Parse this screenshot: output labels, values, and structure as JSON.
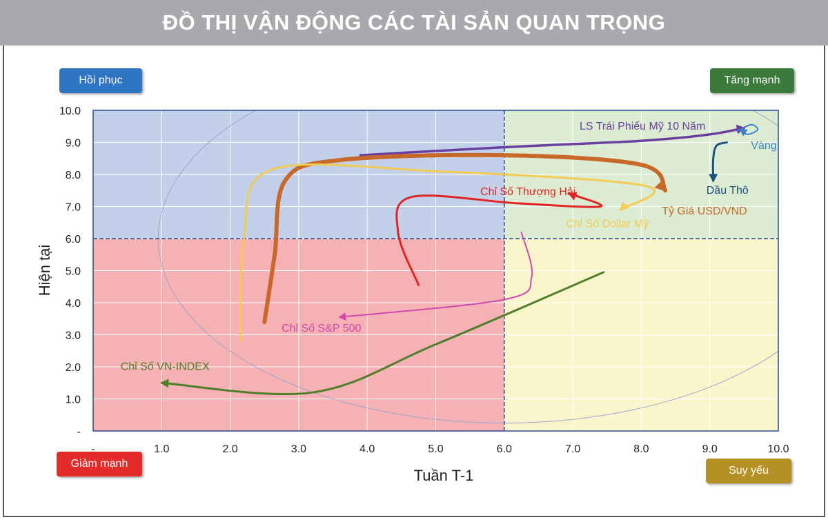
{
  "header": {
    "title": "ĐỒ THỊ VẬN ĐỘNG CÁC TÀI SẢN QUAN TRỌNG"
  },
  "quadrants": {
    "recovering": {
      "label": "Hồi phục",
      "color": "#2e75c4"
    },
    "strong": {
      "label": "Tăng mạnh",
      "color": "#3c7a3c"
    },
    "falling": {
      "label": "Giảm mạnh",
      "color": "#e52a2a"
    },
    "weakening": {
      "label": "Suy yếu",
      "color": "#b59022"
    }
  },
  "chart_data": {
    "type": "line",
    "xlabel": "Tuần T-1",
    "ylabel": "Hiện tại",
    "xlim": [
      0,
      10
    ],
    "ylim": [
      0,
      10
    ],
    "threshold": {
      "x": 6.0,
      "y": 6.0
    },
    "x_ticks": [
      "-",
      "1.0",
      "2.0",
      "3.0",
      "4.0",
      "5.0",
      "6.0",
      "7.0",
      "8.0",
      "9.0",
      "10.0"
    ],
    "y_ticks": [
      "-",
      "1.0",
      "2.0",
      "3.0",
      "4.0",
      "5.0",
      "6.0",
      "7.0",
      "8.0",
      "9.0",
      "10.0"
    ],
    "grid": true,
    "series": [
      {
        "name": "LS Trái Phiếu Mỹ 10 Năm",
        "color": "#6a3fa0",
        "width": 3.5,
        "points": [
          [
            3.9,
            8.6
          ],
          [
            6.0,
            8.85
          ],
          [
            8.0,
            9.05
          ],
          [
            9.0,
            9.25
          ],
          [
            9.5,
            9.45
          ]
        ],
        "label_pos": [
          7.1,
          9.4
        ],
        "label_anchor": "start"
      },
      {
        "name": "Vàng",
        "color": "#3a82c4",
        "width": 2,
        "points": [
          [
            9.4,
            9.35
          ],
          [
            9.6,
            9.55
          ],
          [
            9.7,
            9.4
          ],
          [
            9.55,
            9.25
          ],
          [
            9.45,
            9.4
          ]
        ],
        "label_pos": [
          9.6,
          8.8
        ],
        "label_anchor": "start"
      },
      {
        "name": "Dầu Thô",
        "color": "#1e4f80",
        "width": 3,
        "points": [
          [
            9.25,
            9.0
          ],
          [
            9.1,
            8.9
          ],
          [
            9.05,
            8.5
          ],
          [
            9.05,
            7.8
          ]
        ],
        "label_pos": [
          8.95,
          7.4
        ],
        "label_anchor": "start"
      },
      {
        "name": "Tỷ Giá USD/VND",
        "color": "#c8692a",
        "width": 6,
        "points": [
          [
            2.5,
            3.4
          ],
          [
            2.65,
            5.5
          ],
          [
            2.8,
            7.8
          ],
          [
            3.6,
            8.45
          ],
          [
            6.0,
            8.6
          ],
          [
            8.0,
            8.3
          ],
          [
            8.35,
            7.5
          ]
        ],
        "label_pos": [
          8.3,
          6.75
        ],
        "label_anchor": "start"
      },
      {
        "name": "Chỉ Số Dollar Mỹ",
        "color": "#f2cc52",
        "width": 3,
        "points": [
          [
            2.15,
            2.8
          ],
          [
            2.2,
            6.0
          ],
          [
            2.6,
            8.15
          ],
          [
            5.0,
            8.1
          ],
          [
            8.05,
            7.65
          ],
          [
            7.7,
            6.9
          ]
        ],
        "label_pos": [
          6.9,
          6.35
        ],
        "label_anchor": "start"
      },
      {
        "name": "Chỉ Số Thượng Hải",
        "color": "#e02424",
        "width": 3,
        "points": [
          [
            4.75,
            4.55
          ],
          [
            4.45,
            6.2
          ],
          [
            4.65,
            7.3
          ],
          [
            6.2,
            7.1
          ],
          [
            7.4,
            7.0
          ],
          [
            6.95,
            7.4
          ]
        ],
        "label_pos": [
          5.65,
          7.35
        ],
        "label_anchor": "start"
      },
      {
        "name": "Chỉ Số S&P 500",
        "color": "#d048b0",
        "width": 2,
        "points": [
          [
            6.25,
            6.2
          ],
          [
            6.4,
            4.8
          ],
          [
            6.0,
            4.1
          ],
          [
            3.6,
            3.55
          ]
        ],
        "label_pos": [
          2.75,
          3.1
        ],
        "label_anchor": "start"
      },
      {
        "name": "Chỉ Số VN-INDEX",
        "color": "#4f7f2a",
        "width": 3,
        "points": [
          [
            7.45,
            4.95
          ],
          [
            5.0,
            2.7
          ],
          [
            3.2,
            1.2
          ],
          [
            1.0,
            1.5
          ]
        ],
        "label_pos": [
          0.4,
          1.9
        ],
        "label_anchor": "start"
      }
    ]
  }
}
